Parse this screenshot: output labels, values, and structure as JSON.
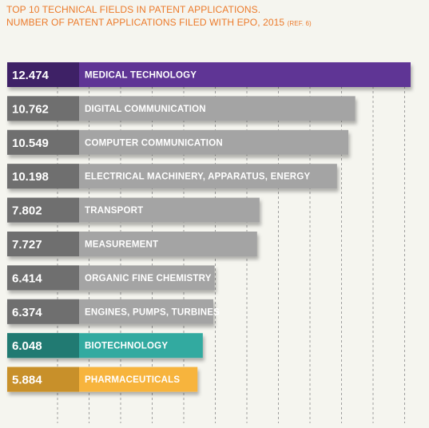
{
  "title_line1": "TOP 10 TECHNICAL FIELDS IN PATENT APPLICATIONS.",
  "title_line2": "NUMBER OF PATENT APPLICATIONS FILED WITH EPO, 2015",
  "title_ref": "(REF. 6)",
  "colors": {
    "accent": "#ec7a2a",
    "purple": "#5e3595",
    "purple_dark": "#3e2166",
    "gray": "#a4a4a4",
    "gray_dark": "#6f6f6f",
    "teal": "#33aaa0",
    "teal_dark": "#217a72",
    "yellow": "#f7b43c",
    "yellow_dark": "#c8902a"
  },
  "chart_data": {
    "type": "bar",
    "orientation": "horizontal",
    "title": "TOP 10 TECHNICAL FIELDS IN PATENT APPLICATIONS. NUMBER OF PATENT APPLICATIONS FILED WITH EPO, 2015",
    "xlim": [
      0,
      13000
    ],
    "grid": true,
    "bars": [
      {
        "category": "MEDICAL TECHNOLOGY",
        "value": 12474,
        "value_label": "12.474",
        "color": "purple"
      },
      {
        "category": "DIGITAL COMMUNICATION",
        "value": 10762,
        "value_label": "10.762",
        "color": "gray"
      },
      {
        "category": "COMPUTER COMMUNICATION",
        "value": 10549,
        "value_label": "10.549",
        "color": "gray"
      },
      {
        "category": "ELECTRICAL MACHINERY, APPARATUS, ENERGY",
        "value": 10198,
        "value_label": "10.198",
        "color": "gray"
      },
      {
        "category": "TRANSPORT",
        "value": 7802,
        "value_label": "7.802",
        "color": "gray"
      },
      {
        "category": "MEASUREMENT",
        "value": 7727,
        "value_label": "7.727",
        "color": "gray"
      },
      {
        "category": "ORGANIC FINE CHEMISTRY",
        "value": 6414,
        "value_label": "6.414",
        "color": "gray"
      },
      {
        "category": "ENGINES, PUMPS, TURBINES",
        "value": 6374,
        "value_label": "6.374",
        "color": "gray"
      },
      {
        "category": "BIOTECHNOLOGY",
        "value": 6048,
        "value_label": "6.048",
        "color": "teal"
      },
      {
        "category": "PHARMACEUTICALS",
        "value": 5884,
        "value_label": "5.884",
        "color": "yellow"
      }
    ]
  }
}
